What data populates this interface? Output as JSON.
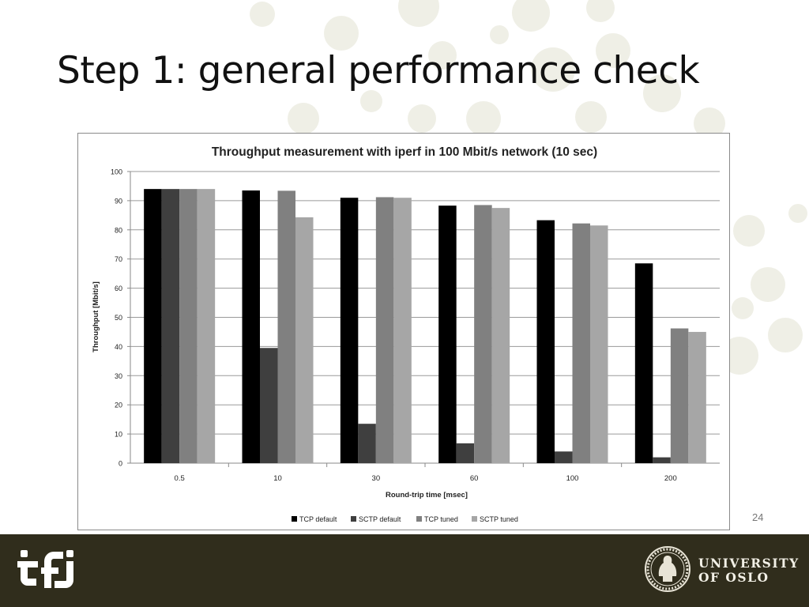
{
  "slide": {
    "title": "Step 1: general performance check",
    "page_number": "24"
  },
  "footer": {
    "left_logo": "ifi",
    "right_logo_line1": "UNIVERSITY",
    "right_logo_line2": "OF OSLO",
    "seal": "university-seal"
  },
  "colors": {
    "footer_bg": "#302d1c",
    "tcp_default": "#000000",
    "sctp_default": "#3f3f3f",
    "tcp_tuned": "#808080",
    "sctp_tuned": "#a6a6a6",
    "dots": "#efefe6"
  },
  "chart_data": {
    "type": "bar",
    "title": "Throughput measurement with iperf in 100 Mbit/s network (10 sec)",
    "xlabel": "Round-trip time [msec]",
    "ylabel": "Throughput [Mbit/s]",
    "ylim": [
      0,
      100
    ],
    "yticks": [
      0,
      10,
      20,
      30,
      40,
      50,
      60,
      70,
      80,
      90,
      100
    ],
    "grid": true,
    "legend_position": "bottom",
    "categories": [
      "0.5",
      "10",
      "30",
      "60",
      "100",
      "200"
    ],
    "series": [
      {
        "name": "TCP default",
        "color": "#000000",
        "values": [
          94,
          93.5,
          91,
          88.3,
          83.3,
          68.5
        ]
      },
      {
        "name": "SCTP default",
        "color": "#3f3f3f",
        "values": [
          94,
          39.5,
          13.5,
          6.8,
          4,
          2
        ]
      },
      {
        "name": "TCP tuned",
        "color": "#808080",
        "values": [
          94,
          93.4,
          91.2,
          88.5,
          82.2,
          46.2
        ]
      },
      {
        "name": "SCTP tuned",
        "color": "#a6a6a6",
        "values": [
          94,
          84.3,
          91,
          87.5,
          81.5,
          45
        ]
      }
    ]
  }
}
